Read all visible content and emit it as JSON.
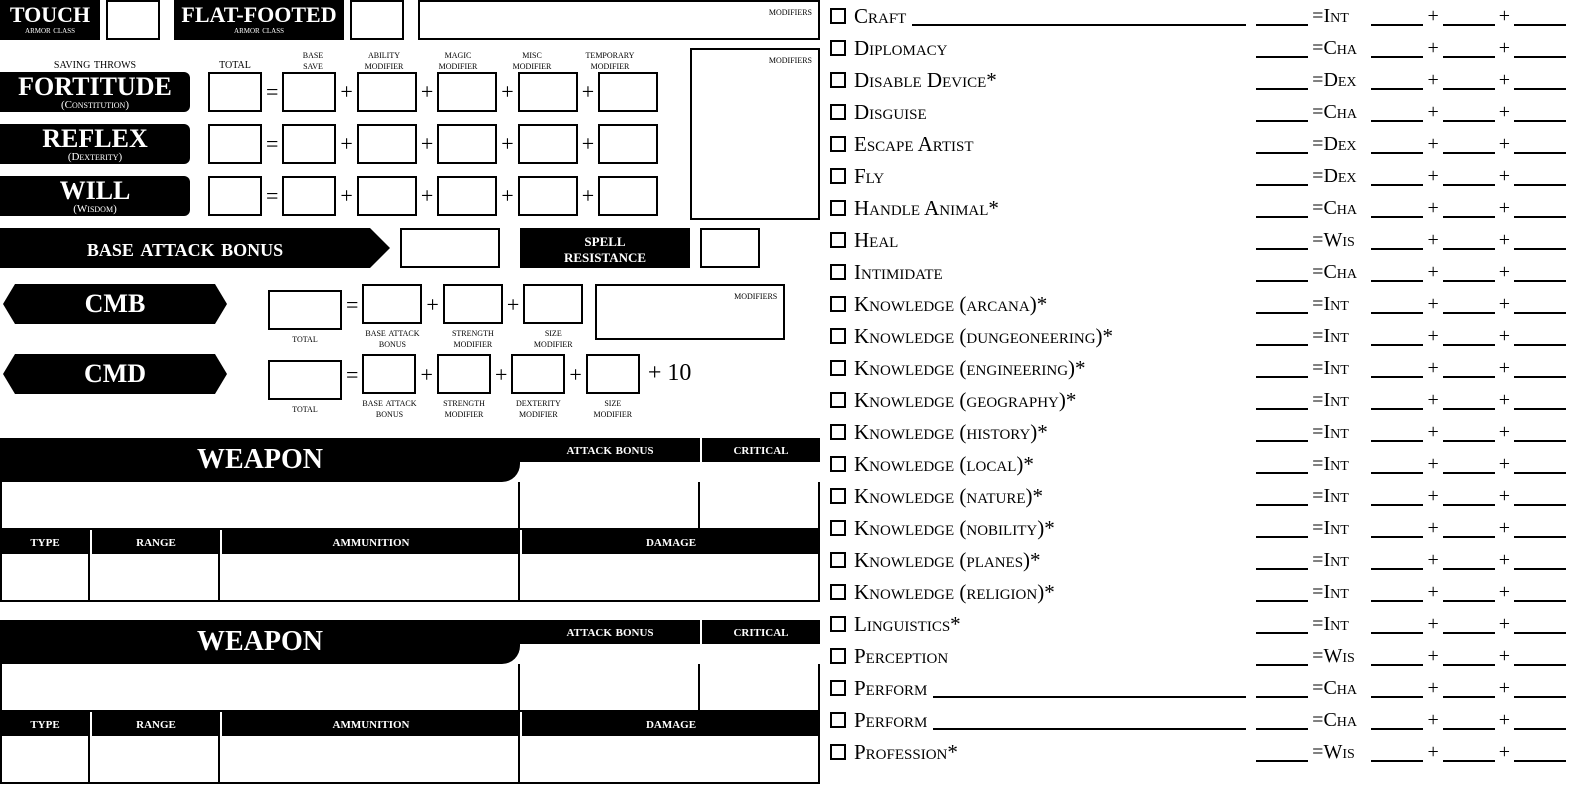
{
  "ac": {
    "touch": {
      "title": "TOUCH",
      "sub": "armor class"
    },
    "flatfooted": {
      "title": "FLAT-FOOTED",
      "sub": "armor class"
    },
    "modifiers_label": "modifiers"
  },
  "saves": {
    "header": {
      "col1": "saving throws",
      "col2": "total",
      "col3_a": "base",
      "col3_b": "save",
      "col4_a": "ability",
      "col4_b": "modifier",
      "col5_a": "magic",
      "col5_b": "modifier",
      "col6_a": "misc",
      "col6_b": "modifier",
      "col7_a": "temporary",
      "col7_b": "modifier"
    },
    "fortitude": {
      "title": "FORTITUDE",
      "sub": "(Constitution)"
    },
    "reflex": {
      "title": "REFLEX",
      "sub": "(Dexterity)"
    },
    "will": {
      "title": "WILL",
      "sub": "(Wisdom)"
    },
    "modifiers_label": "modifiers"
  },
  "bab": {
    "title": "base attack bonus"
  },
  "sr": {
    "title_a": "spell",
    "title_b": "resistance"
  },
  "cmb": {
    "title": "CMB",
    "labels": {
      "total": "total",
      "bab_a": "base attack",
      "bab_b": "bonus",
      "str_a": "strength",
      "str_b": "modifier",
      "size_a": "size",
      "size_b": "modifier"
    },
    "modifiers_label": "modifiers"
  },
  "cmd": {
    "title": "CMD",
    "labels": {
      "total": "total",
      "bab_a": "base attack",
      "bab_b": "bonus",
      "str_a": "strength",
      "str_b": "modifier",
      "dex_a": "dexterity",
      "dex_b": "modifier",
      "size_a": "size",
      "size_b": "modifier"
    },
    "plus10": "+ 10"
  },
  "weapon": {
    "title": "WEAPON",
    "attack_bonus": "attack bonus",
    "critical": "critical",
    "type": "type",
    "range": "range",
    "ammunition": "ammunition",
    "damage": "damage"
  },
  "skills": [
    {
      "name": "Craft",
      "ability": "Int",
      "hasBlank": true
    },
    {
      "name": "Diplomacy",
      "ability": "Cha"
    },
    {
      "name": "Disable Device*",
      "ability": "Dex"
    },
    {
      "name": "Disguise",
      "ability": "Cha"
    },
    {
      "name": "Escape Artist",
      "ability": "Dex"
    },
    {
      "name": "Fly",
      "ability": "Dex"
    },
    {
      "name": "Handle Animal*",
      "ability": "Cha"
    },
    {
      "name": "Heal",
      "ability": "Wis"
    },
    {
      "name": "Intimidate",
      "ability": "Cha"
    },
    {
      "name": "Knowledge (arcana)*",
      "ability": "Int"
    },
    {
      "name": "Knowledge (dungeoneering)*",
      "ability": "Int"
    },
    {
      "name": "Knowledge (engineering)*",
      "ability": "Int"
    },
    {
      "name": "Knowledge (geography)*",
      "ability": "Int"
    },
    {
      "name": "Knowledge (history)*",
      "ability": "Int"
    },
    {
      "name": "Knowledge (local)*",
      "ability": "Int"
    },
    {
      "name": "Knowledge (nature)*",
      "ability": "Int"
    },
    {
      "name": "Knowledge (nobility)*",
      "ability": "Int"
    },
    {
      "name": "Knowledge (planes)*",
      "ability": "Int"
    },
    {
      "name": "Knowledge (religion)*",
      "ability": "Int"
    },
    {
      "name": "Linguistics*",
      "ability": "Int"
    },
    {
      "name": "Perception",
      "ability": "Wis"
    },
    {
      "name": "Perform",
      "ability": "Cha",
      "hasBlank": true
    },
    {
      "name": "Perform",
      "ability": "Cha",
      "hasBlank": true
    },
    {
      "name": "Profession*",
      "ability": "Wis"
    }
  ]
}
